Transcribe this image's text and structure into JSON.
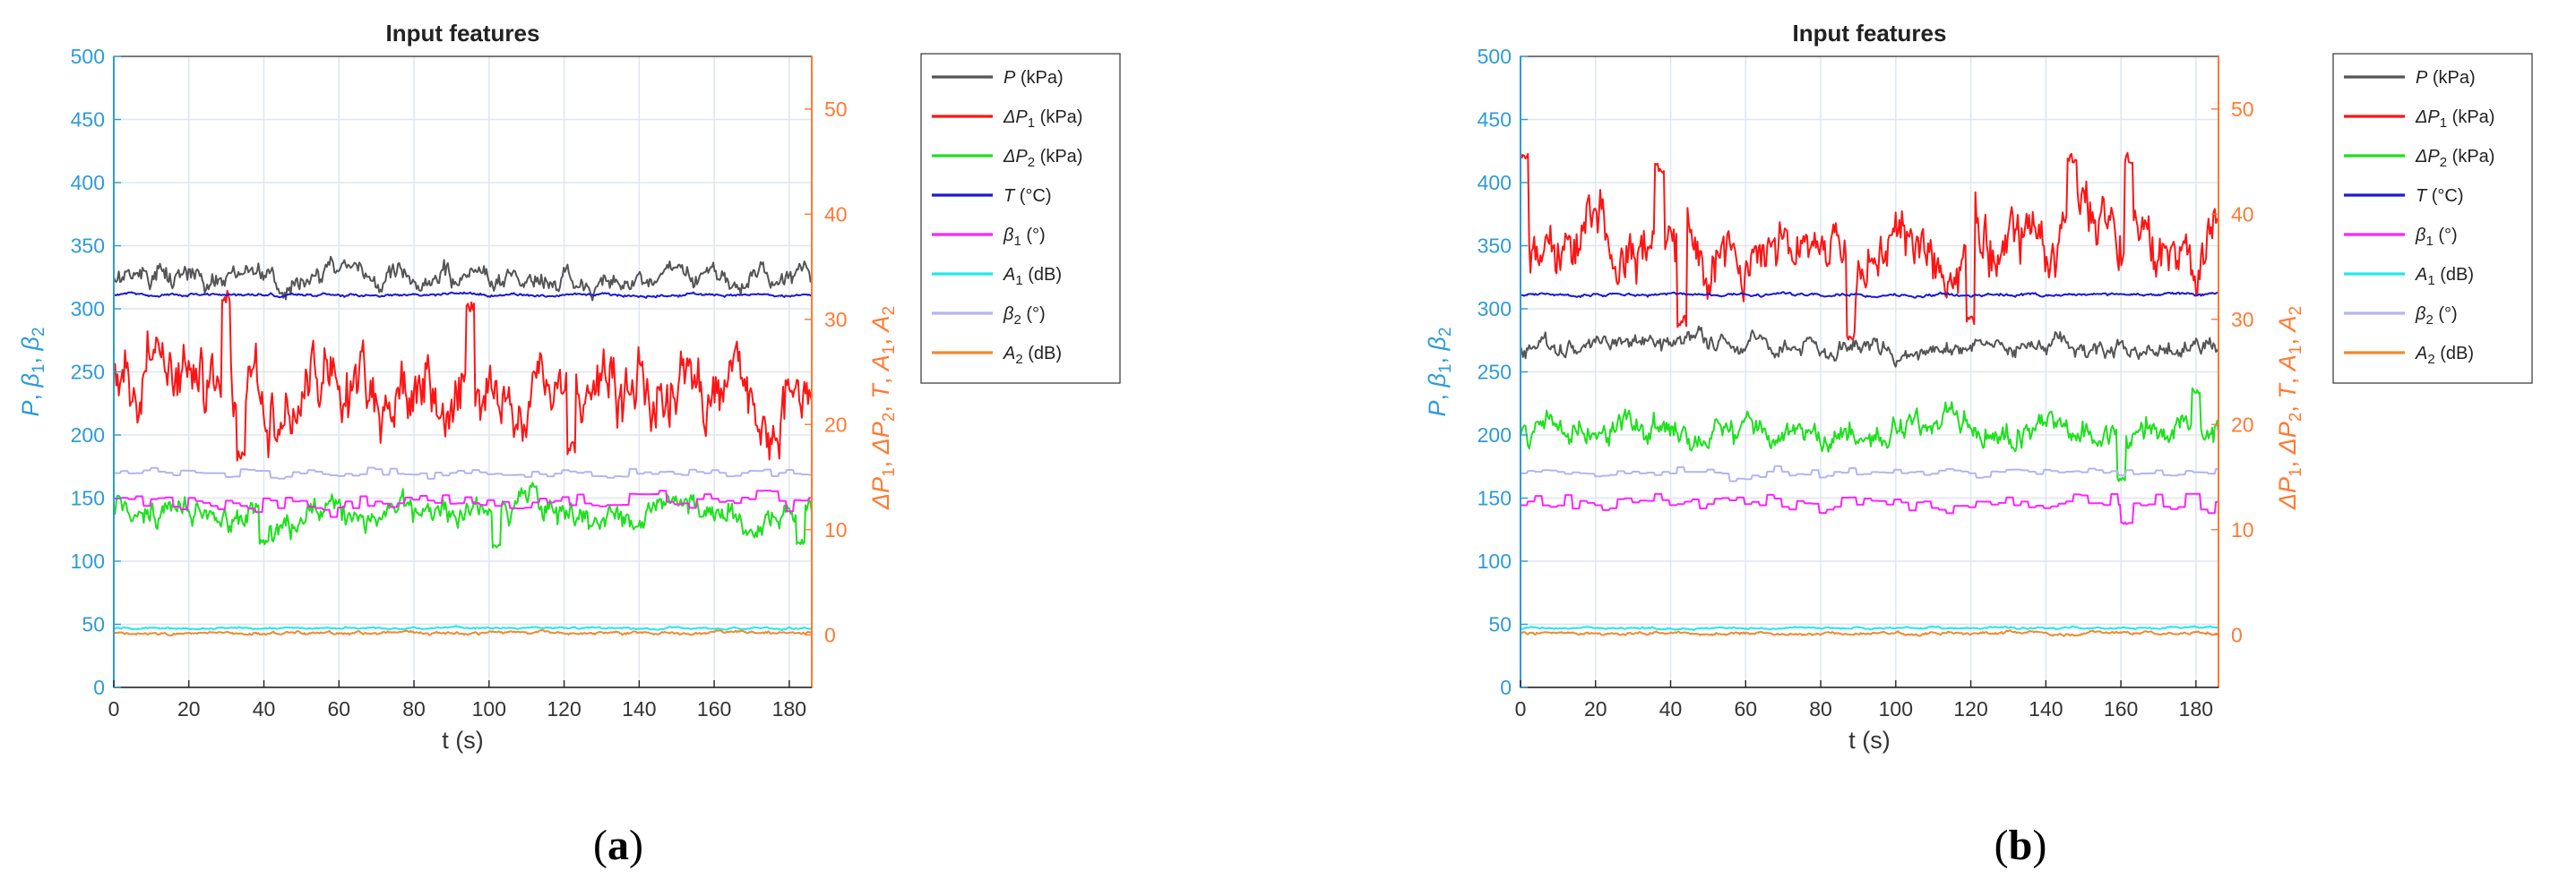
{
  "chart_data": [
    {
      "panel": "a",
      "type": "line",
      "caption_letter": "a",
      "title": "Input features",
      "xlabel": "t (s)",
      "ylabel_left": [
        "P",
        "β",
        "1",
        "β",
        "2"
      ],
      "ylabel_right": [
        "ΔP",
        "1",
        "ΔP",
        "2",
        "T",
        "A",
        "1",
        "A",
        "2"
      ],
      "xlim": [
        0,
        186
      ],
      "ylim_left": [
        0,
        500
      ],
      "ylim_right": [
        -5,
        55
      ],
      "xticks": [
        0,
        20,
        40,
        60,
        80,
        100,
        120,
        140,
        160,
        180
      ],
      "yticks_left": [
        0,
        50,
        100,
        150,
        200,
        250,
        300,
        350,
        400,
        450,
        500
      ],
      "yticks_right": [
        0,
        10,
        20,
        30,
        40,
        50
      ],
      "grid": true,
      "legend_position": "outside right, top",
      "series": [
        {
          "name": "P (kPa)",
          "var": "P",
          "sub": "",
          "unit": " (kPa)",
          "color": "#555555",
          "axis": "left",
          "base": 325,
          "noise": 11,
          "spikes": []
        },
        {
          "name": "ΔP1 (kPa)",
          "var": "ΔP",
          "sub": "1",
          "unit": " (kPa)",
          "color": "#ff1414",
          "axis": "left",
          "base": 235,
          "noise": 36,
          "spikes": [
            [
              30,
              310
            ],
            [
              95,
              300
            ],
            [
              34,
              185
            ],
            [
              122,
              190
            ]
          ]
        },
        {
          "name": "ΔP2 (kPa)",
          "var": "ΔP",
          "sub": "2",
          "unit": " (kPa)",
          "color": "#1ee01e",
          "axis": "left",
          "base": 138,
          "noise": 14,
          "spikes": [
            [
              40,
              115
            ],
            [
              102,
              112
            ],
            [
              183,
              115
            ]
          ]
        },
        {
          "name": "T (°C)",
          "var": "T",
          "sub": "",
          "unit": " (°C)",
          "color": "#1a1ad6",
          "axis": "left",
          "base": 311,
          "noise": 1.5,
          "spikes": []
        },
        {
          "name": "β1 (°)",
          "var": "β",
          "sub": "1",
          "unit": " (°)",
          "color": "#ff22ff",
          "axis": "left",
          "base": 147,
          "noise": 7,
          "spikes": []
        },
        {
          "name": "A1 (dB)",
          "var": "A",
          "sub": "1",
          "unit": " (dB)",
          "color": "#22e8e8",
          "axis": "left",
          "base": 47,
          "noise": 1,
          "spikes": []
        },
        {
          "name": "β2 (°)",
          "var": "β",
          "sub": "2",
          "unit": " (°)",
          "color": "#b4b4f0",
          "axis": "left",
          "base": 170,
          "noise": 4,
          "spikes": []
        },
        {
          "name": "A2 (dB)",
          "var": "A",
          "sub": "2",
          "unit": " (dB)",
          "color": "#f08a30",
          "axis": "left",
          "base": 43,
          "noise": 1.5,
          "spikes": []
        }
      ]
    },
    {
      "panel": "b",
      "type": "line",
      "caption_letter": "b",
      "title": "Input features",
      "xlabel": "t (s)",
      "ylabel_left": [
        "P",
        "β",
        "1",
        "β",
        "2"
      ],
      "ylabel_right": [
        "ΔP",
        "1",
        "ΔP",
        "2",
        "T",
        "A",
        "1",
        "A",
        "2"
      ],
      "xlim": [
        0,
        186
      ],
      "ylim_left": [
        0,
        500
      ],
      "ylim_right": [
        -5,
        55
      ],
      "xticks": [
        0,
        20,
        40,
        60,
        80,
        100,
        120,
        140,
        160,
        180
      ],
      "yticks_left": [
        0,
        50,
        100,
        150,
        200,
        250,
        300,
        350,
        400,
        450,
        500
      ],
      "yticks_right": [
        0,
        10,
        20,
        30,
        40,
        50
      ],
      "grid": true,
      "legend_position": "outside right, top",
      "series": [
        {
          "name": "P (kPa)",
          "var": "P",
          "sub": "",
          "unit": " (kPa)",
          "color": "#555555",
          "axis": "left",
          "base": 270,
          "noise": 9,
          "spikes": []
        },
        {
          "name": "ΔP1 (kPa)",
          "var": "ΔP",
          "sub": "1",
          "unit": " (kPa)",
          "color": "#ff1414",
          "axis": "left",
          "base": 350,
          "noise": 30,
          "spikes": [
            [
              1,
              420
            ],
            [
              37,
              412
            ],
            [
              43,
              290
            ],
            [
              88,
              280
            ],
            [
              120,
              290
            ],
            [
              147,
              420
            ],
            [
              162,
              420
            ]
          ]
        },
        {
          "name": "ΔP2 (kPa)",
          "var": "ΔP",
          "sub": "2",
          "unit": " (kPa)",
          "color": "#1ee01e",
          "axis": "left",
          "base": 205,
          "noise": 14,
          "spikes": [
            [
              160,
              165
            ],
            [
              180,
              235
            ]
          ]
        },
        {
          "name": "T (°C)",
          "var": "T",
          "sub": "",
          "unit": " (°C)",
          "color": "#1a1ad6",
          "axis": "left",
          "base": 311,
          "noise": 1.5,
          "spikes": []
        },
        {
          "name": "β1 (°)",
          "var": "β",
          "sub": "1",
          "unit": " (°)",
          "color": "#ff22ff",
          "axis": "left",
          "base": 146,
          "noise": 7,
          "spikes": [
            [
              161,
              130
            ]
          ]
        },
        {
          "name": "A1 (dB)",
          "var": "A",
          "sub": "1",
          "unit": " (dB)",
          "color": "#22e8e8",
          "axis": "left",
          "base": 47,
          "noise": 1,
          "spikes": []
        },
        {
          "name": "β2 (°)",
          "var": "β",
          "sub": "2",
          "unit": " (°)",
          "color": "#b4b4f0",
          "axis": "left",
          "base": 170,
          "noise": 4,
          "spikes": []
        },
        {
          "name": "A2 (dB)",
          "var": "A",
          "sub": "2",
          "unit": " (dB)",
          "color": "#f08a30",
          "axis": "left",
          "base": 43,
          "noise": 1.5,
          "spikes": []
        }
      ]
    }
  ],
  "colors": {
    "left_axis": "#2e9bd6",
    "right_axis": "#ff7a33",
    "grid": "#dfe6ef",
    "frame": "#222222"
  }
}
